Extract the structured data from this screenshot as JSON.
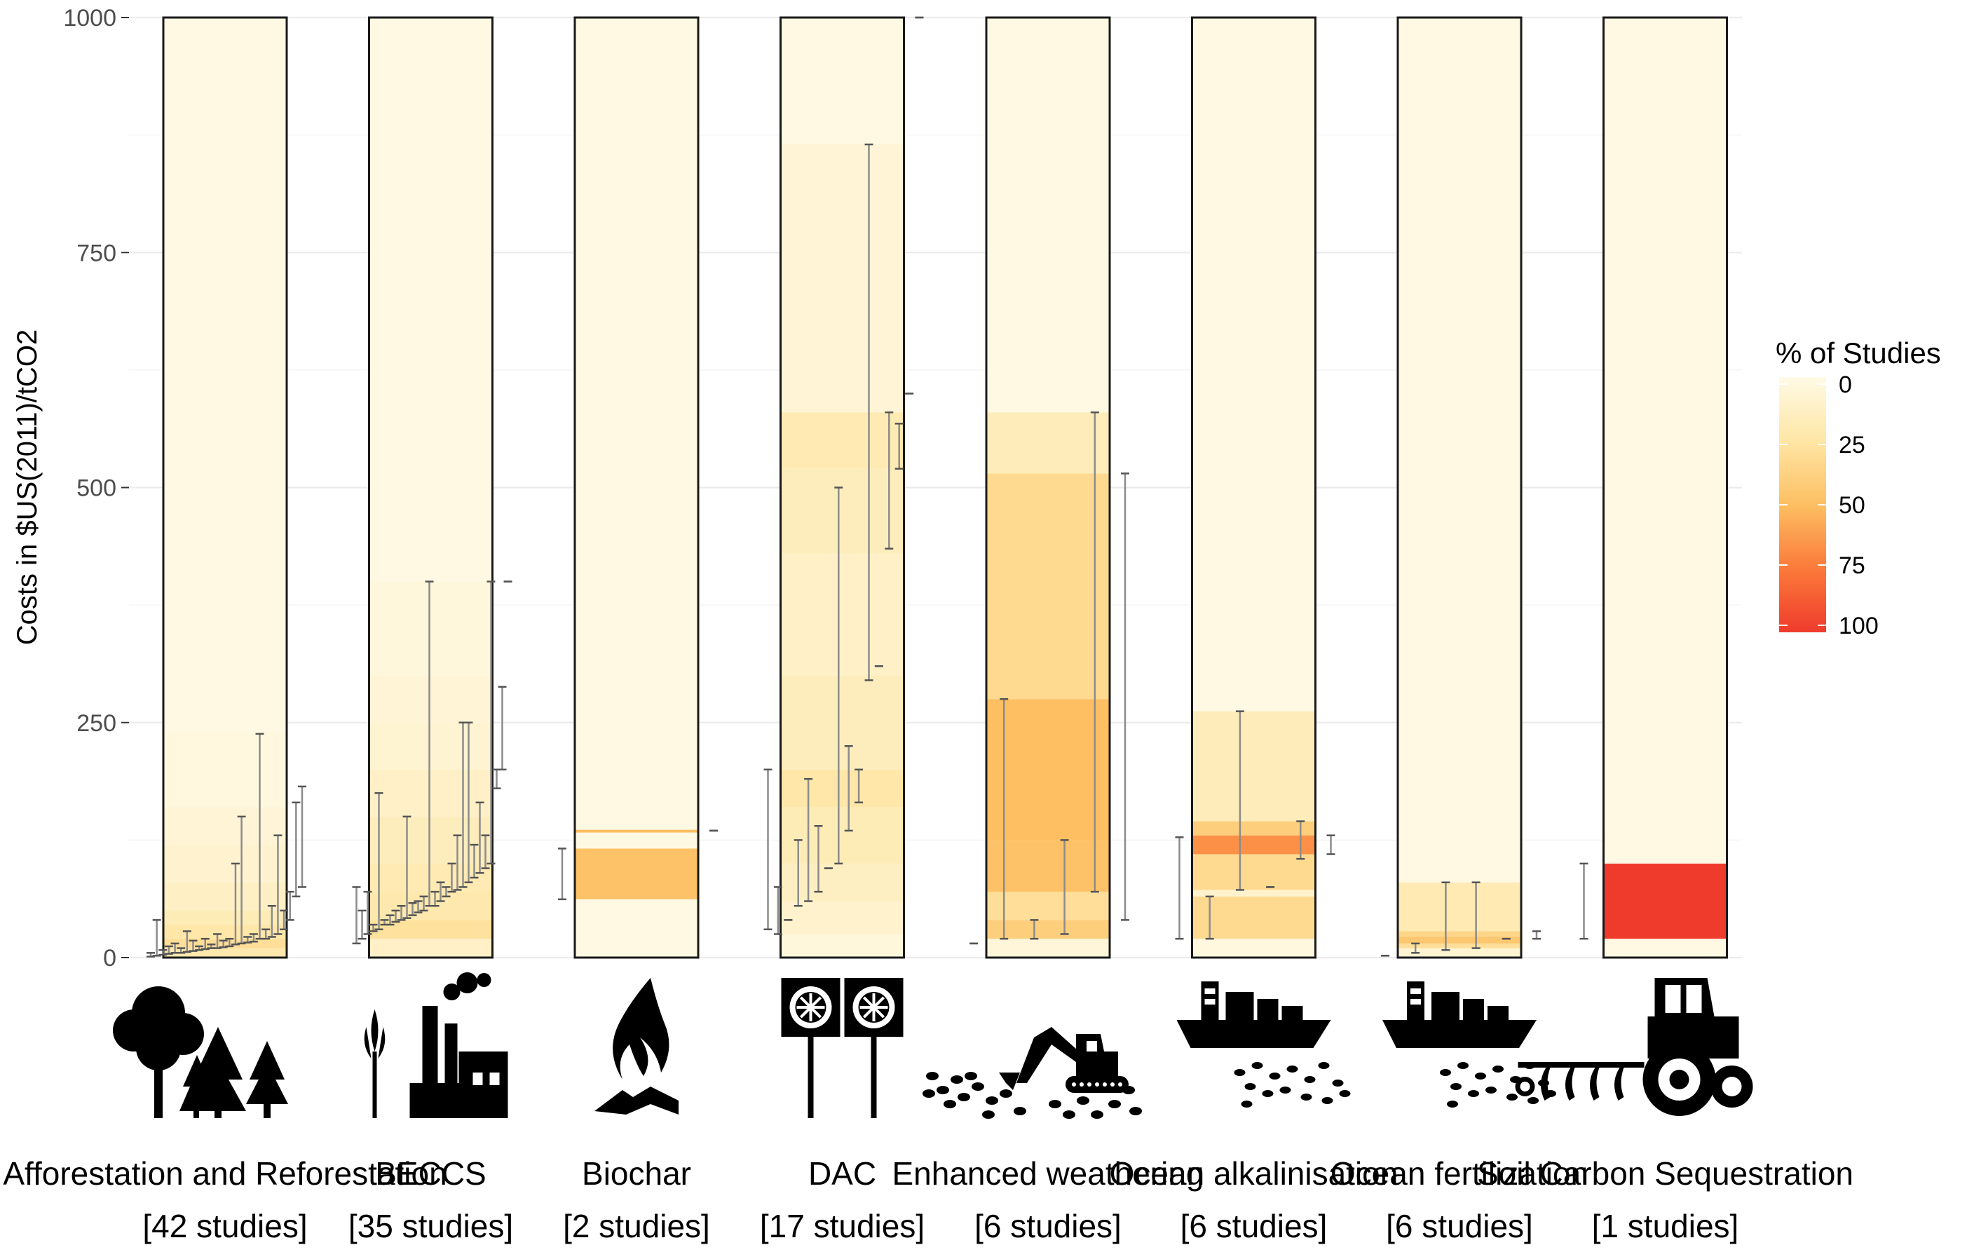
{
  "chart_data": {
    "type": "heatmap",
    "title": "",
    "ylabel": "Costs in $US(2011)/tCO2",
    "xlabel": "",
    "ylim": [
      0,
      1000
    ],
    "yticks": [
      0,
      250,
      500,
      750,
      1000
    ],
    "grid": true,
    "legend": {
      "title": "% of Studies",
      "placement": "right",
      "ticks": [
        0,
        25,
        50,
        75,
        100
      ],
      "colors": [
        "#fffae6",
        "#fee6a5",
        "#fdbf62",
        "#fb7a3a",
        "#ef3b2c"
      ]
    },
    "categories": [
      {
        "name": "Afforestation and Reforestation",
        "studies": "[42 studies]",
        "icon": "trees-icon",
        "bands": [
          {
            "y0": 0,
            "y1": 10,
            "pct": 22
          },
          {
            "y0": 10,
            "y1": 20,
            "pct": 30
          },
          {
            "y0": 20,
            "y1": 35,
            "pct": 24
          },
          {
            "y0": 35,
            "y1": 50,
            "pct": 18
          },
          {
            "y0": 50,
            "y1": 80,
            "pct": 13
          },
          {
            "y0": 80,
            "y1": 120,
            "pct": 9
          },
          {
            "y0": 120,
            "y1": 160,
            "pct": 6
          },
          {
            "y0": 160,
            "y1": 240,
            "pct": 3
          },
          {
            "y0": 240,
            "y1": 1000,
            "pct": 1
          }
        ],
        "ranges": [
          [
            1,
            5
          ],
          [
            2,
            40
          ],
          [
            3,
            8
          ],
          [
            4,
            12
          ],
          [
            5,
            15
          ],
          [
            5,
            10
          ],
          [
            6,
            28
          ],
          [
            7,
            18
          ],
          [
            8,
            12
          ],
          [
            9,
            20
          ],
          [
            10,
            14
          ],
          [
            10,
            25
          ],
          [
            11,
            18
          ],
          [
            12,
            20
          ],
          [
            14,
            100
          ],
          [
            15,
            150
          ],
          [
            16,
            22
          ],
          [
            17,
            25
          ],
          [
            20,
            238
          ],
          [
            20,
            30
          ],
          [
            22,
            55
          ],
          [
            25,
            130
          ],
          [
            30,
            50
          ],
          [
            40,
            70
          ],
          [
            65,
            165
          ],
          [
            75,
            182
          ]
        ]
      },
      {
        "name": "BECCS",
        "studies": "[35 studies]",
        "icon": "factory-icon",
        "bands": [
          {
            "y0": 0,
            "y1": 20,
            "pct": 12
          },
          {
            "y0": 20,
            "y1": 40,
            "pct": 28
          },
          {
            "y0": 40,
            "y1": 70,
            "pct": 22
          },
          {
            "y0": 70,
            "y1": 100,
            "pct": 20
          },
          {
            "y0": 100,
            "y1": 150,
            "pct": 16
          },
          {
            "y0": 150,
            "y1": 200,
            "pct": 12
          },
          {
            "y0": 200,
            "y1": 250,
            "pct": 8
          },
          {
            "y0": 250,
            "y1": 300,
            "pct": 6
          },
          {
            "y0": 300,
            "y1": 400,
            "pct": 4
          },
          {
            "y0": 400,
            "y1": 1000,
            "pct": 1
          }
        ],
        "ranges": [
          [
            15,
            75
          ],
          [
            20,
            50
          ],
          [
            25,
            70
          ],
          [
            28,
            35
          ],
          [
            30,
            175
          ],
          [
            35,
            40
          ],
          [
            35,
            45
          ],
          [
            38,
            50
          ],
          [
            40,
            55
          ],
          [
            42,
            150
          ],
          [
            45,
            58
          ],
          [
            48,
            60
          ],
          [
            50,
            65
          ],
          [
            55,
            400
          ],
          [
            55,
            70
          ],
          [
            60,
            80
          ],
          [
            65,
            75
          ],
          [
            70,
            100
          ],
          [
            72,
            130
          ],
          [
            75,
            250
          ],
          [
            80,
            250
          ],
          [
            85,
            120
          ],
          [
            90,
            165
          ],
          [
            95,
            130
          ],
          [
            100,
            400
          ],
          [
            180,
            200
          ],
          [
            200,
            288
          ],
          [
            400,
            400
          ]
        ]
      },
      {
        "name": "Biochar",
        "studies": "[2 studies]",
        "icon": "fire-icon",
        "bands": [
          {
            "y0": 0,
            "y1": 62,
            "pct": 1
          },
          {
            "y0": 62,
            "y1": 116,
            "pct": 48
          },
          {
            "y0": 116,
            "y1": 133,
            "pct": 1
          },
          {
            "y0": 133,
            "y1": 136,
            "pct": 50
          },
          {
            "y0": 136,
            "y1": 1000,
            "pct": 1
          }
        ],
        "ranges": [
          [
            62,
            116
          ],
          [
            135,
            135
          ]
        ]
      },
      {
        "name": "DAC",
        "studies": "[17 studies]",
        "icon": "fans-icon",
        "bands": [
          {
            "y0": 0,
            "y1": 25,
            "pct": 4
          },
          {
            "y0": 25,
            "y1": 60,
            "pct": 10
          },
          {
            "y0": 60,
            "y1": 100,
            "pct": 14
          },
          {
            "y0": 100,
            "y1": 160,
            "pct": 18
          },
          {
            "y0": 160,
            "y1": 200,
            "pct": 24
          },
          {
            "y0": 200,
            "y1": 300,
            "pct": 16
          },
          {
            "y0": 300,
            "y1": 430,
            "pct": 12
          },
          {
            "y0": 430,
            "y1": 520,
            "pct": 16
          },
          {
            "y0": 520,
            "y1": 580,
            "pct": 20
          },
          {
            "y0": 580,
            "y1": 865,
            "pct": 6
          },
          {
            "y0": 865,
            "y1": 1000,
            "pct": 1
          }
        ],
        "ranges": [
          [
            30,
            200
          ],
          [
            25,
            75
          ],
          [
            40,
            40
          ],
          [
            55,
            125
          ],
          [
            60,
            190
          ],
          [
            70,
            140
          ],
          [
            95,
            95
          ],
          [
            100,
            500
          ],
          [
            135,
            225
          ],
          [
            165,
            200
          ],
          [
            295,
            865
          ],
          [
            310,
            310
          ],
          [
            435,
            580
          ],
          [
            520,
            568
          ],
          [
            600,
            600
          ],
          [
            1000,
            1000
          ]
        ]
      },
      {
        "name": "Enhanced weathering",
        "studies": "[6 studies]",
        "icon": "excavator-icon",
        "bands": [
          {
            "y0": 0,
            "y1": 20,
            "pct": 5
          },
          {
            "y0": 20,
            "y1": 40,
            "pct": 40
          },
          {
            "y0": 40,
            "y1": 70,
            "pct": 30
          },
          {
            "y0": 70,
            "y1": 125,
            "pct": 48
          },
          {
            "y0": 125,
            "y1": 275,
            "pct": 50
          },
          {
            "y0": 275,
            "y1": 515,
            "pct": 33
          },
          {
            "y0": 515,
            "y1": 580,
            "pct": 17
          },
          {
            "y0": 580,
            "y1": 1000,
            "pct": 1
          }
        ],
        "ranges": [
          [
            15,
            15
          ],
          [
            20,
            275
          ],
          [
            20,
            40
          ],
          [
            25,
            125
          ],
          [
            70,
            580
          ],
          [
            40,
            515
          ]
        ]
      },
      {
        "name": "Ocean alkalinisation",
        "studies": "[6 studies]",
        "icon": "ship-icon",
        "bands": [
          {
            "y0": 0,
            "y1": 20,
            "pct": 3
          },
          {
            "y0": 20,
            "y1": 65,
            "pct": 33
          },
          {
            "y0": 65,
            "y1": 72,
            "pct": 10
          },
          {
            "y0": 72,
            "y1": 110,
            "pct": 33
          },
          {
            "y0": 110,
            "y1": 130,
            "pct": 67
          },
          {
            "y0": 130,
            "y1": 145,
            "pct": 40
          },
          {
            "y0": 145,
            "y1": 262,
            "pct": 17
          },
          {
            "y0": 262,
            "y1": 1000,
            "pct": 1
          }
        ],
        "ranges": [
          [
            20,
            128
          ],
          [
            20,
            65
          ],
          [
            72,
            262
          ],
          [
            75,
            75
          ],
          [
            105,
            145
          ],
          [
            110,
            130
          ]
        ]
      },
      {
        "name": "Ocean fertilization",
        "studies": "[6 studies]",
        "icon": "ship-icon",
        "bands": [
          {
            "y0": 0,
            "y1": 10,
            "pct": 8
          },
          {
            "y0": 10,
            "y1": 15,
            "pct": 30
          },
          {
            "y0": 15,
            "y1": 22,
            "pct": 45
          },
          {
            "y0": 22,
            "y1": 28,
            "pct": 35
          },
          {
            "y0": 28,
            "y1": 80,
            "pct": 20
          },
          {
            "y0": 80,
            "y1": 1000,
            "pct": 1
          }
        ],
        "ranges": [
          [
            2,
            2
          ],
          [
            5,
            15
          ],
          [
            8,
            80
          ],
          [
            10,
            80
          ],
          [
            20,
            20
          ],
          [
            20,
            28
          ]
        ]
      },
      {
        "name": "Soil Carbon Sequestration",
        "studies": "[1 studies]",
        "icon": "tractor-icon",
        "bands": [
          {
            "y0": 0,
            "y1": 20,
            "pct": 1
          },
          {
            "y0": 20,
            "y1": 100,
            "pct": 100
          },
          {
            "y0": 100,
            "y1": 1000,
            "pct": 1
          }
        ],
        "ranges": [
          [
            20,
            100
          ]
        ]
      }
    ]
  }
}
